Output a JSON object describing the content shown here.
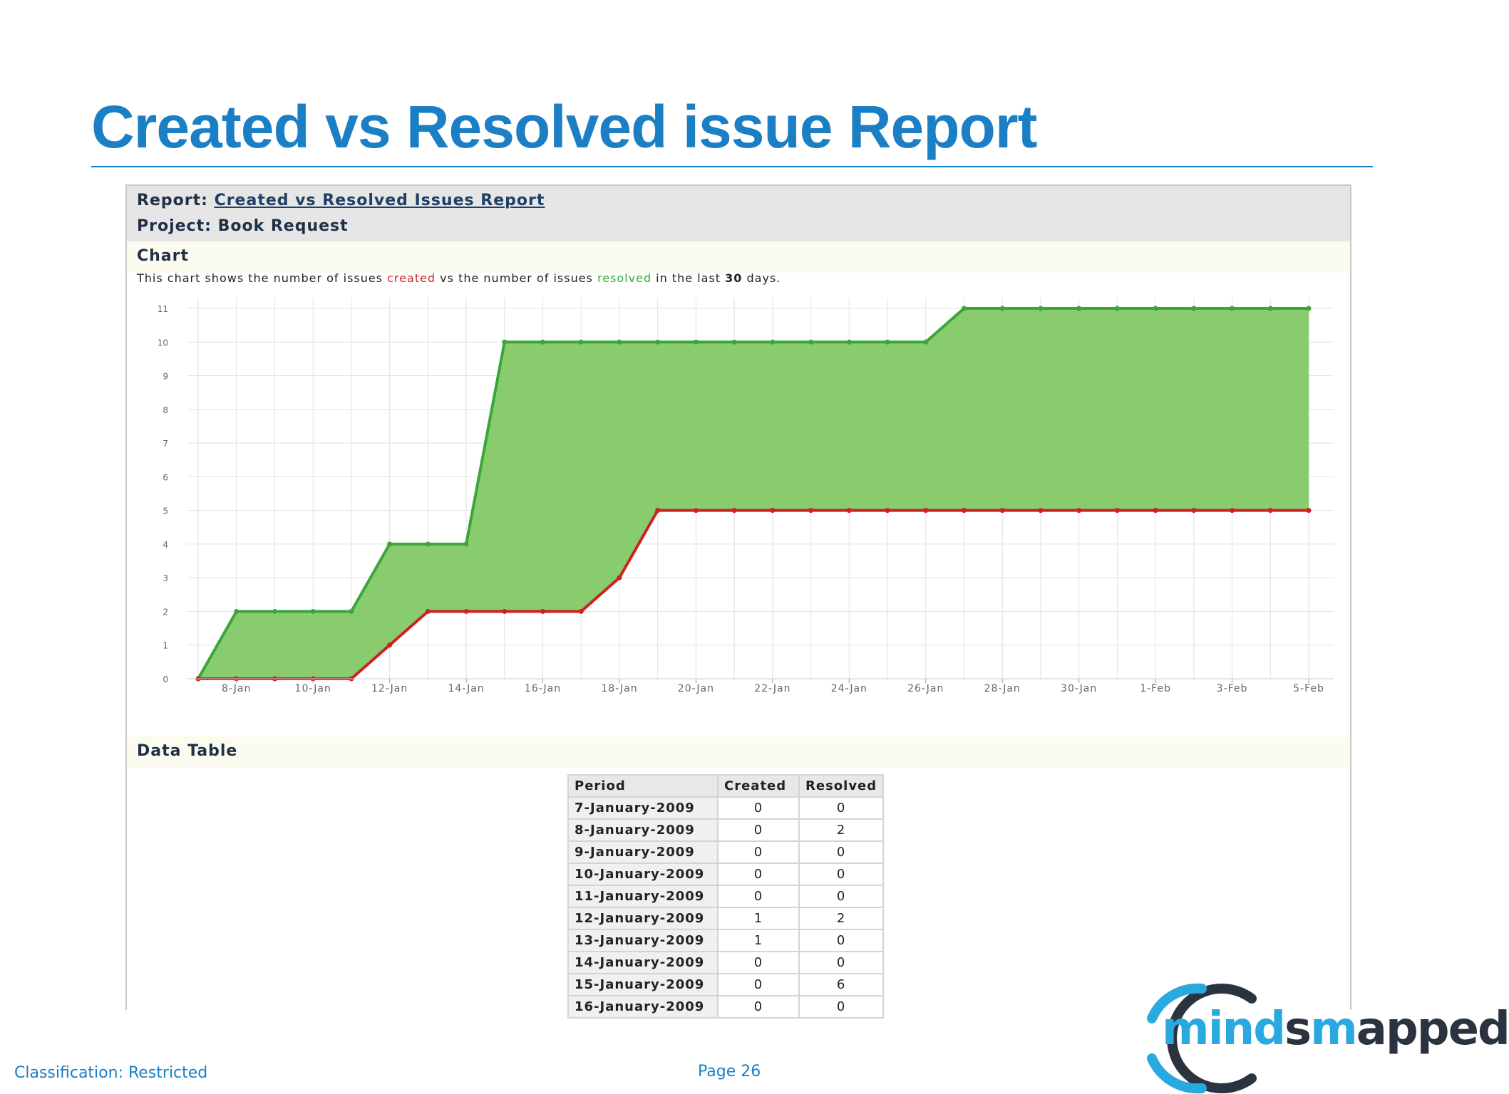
{
  "slide": {
    "title": "Created vs Resolved issue Report",
    "footer_classification": "Classification: Restricted",
    "footer_page": "Page 26"
  },
  "report": {
    "report_label": "Report:",
    "report_name": "Created vs Resolved Issues Report",
    "project_label": "Project:",
    "project_name": "Book Request",
    "chart_section": "Chart",
    "desc_part1": "This chart shows the number of issues ",
    "desc_created": "created",
    "desc_part2": " vs the number of issues ",
    "desc_resolved": "resolved",
    "desc_part3": " in the last ",
    "desc_days": "30",
    "desc_part4": " days.",
    "data_table_section": "Data Table"
  },
  "colors": {
    "title_blue": "#1a7fc4",
    "created_line": "#cc2222",
    "resolved_line": "#3aa63a",
    "fill_green": "#88cc6e",
    "grid": "#e2e2e2"
  },
  "chart_data": {
    "type": "area",
    "title": "",
    "xlabel": "",
    "ylabel": "",
    "x": [
      "7-Jan",
      "8-Jan",
      "9-Jan",
      "10-Jan",
      "11-Jan",
      "12-Jan",
      "13-Jan",
      "14-Jan",
      "15-Jan",
      "16-Jan",
      "17-Jan",
      "18-Jan",
      "19-Jan",
      "20-Jan",
      "21-Jan",
      "22-Jan",
      "23-Jan",
      "24-Jan",
      "25-Jan",
      "26-Jan",
      "27-Jan",
      "28-Jan",
      "29-Jan",
      "30-Jan",
      "31-Jan",
      "1-Feb",
      "2-Feb",
      "3-Feb",
      "4-Feb",
      "5-Feb"
    ],
    "x_tick_labels": [
      "8-Jan",
      "10-Jan",
      "12-Jan",
      "14-Jan",
      "16-Jan",
      "18-Jan",
      "20-Jan",
      "22-Jan",
      "24-Jan",
      "26-Jan",
      "28-Jan",
      "30-Jan",
      "1-Feb",
      "3-Feb",
      "5-Feb"
    ],
    "ylim": [
      0,
      11
    ],
    "y_ticks": [
      0,
      1,
      2,
      3,
      4,
      5,
      6,
      7,
      8,
      9,
      10,
      11
    ],
    "grid": true,
    "legend": "none",
    "series": [
      {
        "values": [
          0,
          2,
          2,
          2,
          2,
          4,
          4,
          4,
          10,
          10,
          10,
          10,
          10,
          10,
          10,
          10,
          10,
          10,
          10,
          10,
          11,
          11,
          11,
          11,
          11,
          11,
          11,
          11,
          11,
          11
        ]
      },
      {
        "values": [
          0,
          0,
          0,
          0,
          0,
          1,
          2,
          2,
          2,
          2,
          2,
          3,
          5,
          5,
          5,
          5,
          5,
          5,
          5,
          5,
          5,
          5,
          5,
          5,
          5,
          5,
          5,
          5,
          5,
          5
        ]
      }
    ]
  },
  "data_table": {
    "headers": [
      "Period",
      "Created",
      "Resolved"
    ],
    "rows": [
      [
        "7-January-2009",
        "0",
        "0"
      ],
      [
        "8-January-2009",
        "0",
        "2"
      ],
      [
        "9-January-2009",
        "0",
        "0"
      ],
      [
        "10-January-2009",
        "0",
        "0"
      ],
      [
        "11-January-2009",
        "0",
        "0"
      ],
      [
        "12-January-2009",
        "1",
        "2"
      ],
      [
        "13-January-2009",
        "1",
        "0"
      ],
      [
        "14-January-2009",
        "0",
        "0"
      ],
      [
        "15-January-2009",
        "0",
        "6"
      ],
      [
        "16-January-2009",
        "0",
        "0"
      ]
    ]
  },
  "logo": {
    "part_mind": "mind",
    "part_s": "s",
    "part_m": "m",
    "part_apped": "apped"
  }
}
